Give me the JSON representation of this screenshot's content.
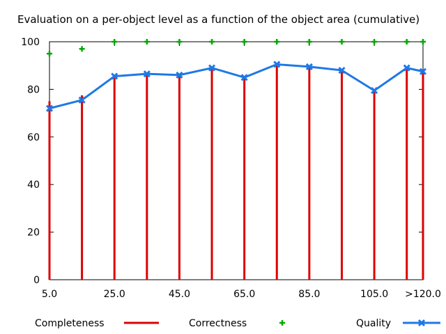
{
  "chart_data": {
    "type": "line",
    "title": "Evaluation on a per-object level as a function of the object area (cumulative)",
    "xlabel": "",
    "ylabel": "",
    "x": [
      5,
      15,
      25,
      35,
      45,
      55,
      65,
      75,
      85,
      95,
      105,
      115,
      120
    ],
    "xlim": [
      5,
      120
    ],
    "ylim": [
      0,
      100
    ],
    "x_tick_labels": [
      "5.0",
      "25.0",
      "45.0",
      "65.0",
      "85.0",
      "105.0",
      ">120.0"
    ],
    "x_tick_values": [
      5,
      25,
      45,
      65,
      85,
      105,
      120
    ],
    "y_tick_labels": [
      "0",
      "20",
      "40",
      "60",
      "80",
      "100"
    ],
    "y_tick_values": [
      0,
      20,
      40,
      60,
      80,
      100
    ],
    "grid": false,
    "legend_position": "bottom",
    "series": [
      {
        "name": "Completeness",
        "style": "impulses",
        "color": "#dd0000",
        "values": [
          75,
          77.5,
          86,
          87,
          86.5,
          89.5,
          85.5,
          91,
          90,
          88.5,
          80,
          89.5,
          88
        ]
      },
      {
        "name": "Correctness",
        "style": "points",
        "color": "#00aa00",
        "values": [
          95,
          97,
          100,
          100,
          100,
          100,
          100,
          100,
          100,
          100,
          100,
          100,
          100
        ]
      },
      {
        "name": "Quality",
        "style": "linespoints",
        "color": "#1e78e6",
        "values": [
          72,
          75.5,
          85.5,
          86.5,
          86,
          89,
          85,
          90.5,
          89.5,
          88,
          79.5,
          89,
          87.5
        ]
      }
    ]
  }
}
